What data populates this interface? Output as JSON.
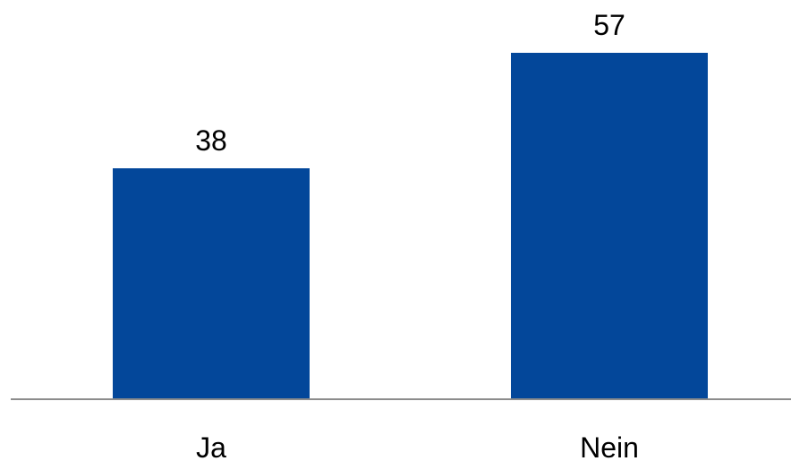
{
  "chart_data": {
    "type": "bar",
    "categories": [
      "Ja",
      "Nein"
    ],
    "values": [
      38,
      57
    ],
    "value_labels": [
      "38",
      "57"
    ],
    "title": "",
    "xlabel": "",
    "ylabel": "",
    "ylim": [
      0,
      57
    ],
    "grid": false,
    "legend": "none",
    "colors": {
      "bar": "#03479A",
      "axis": "#8C8C8C"
    }
  }
}
